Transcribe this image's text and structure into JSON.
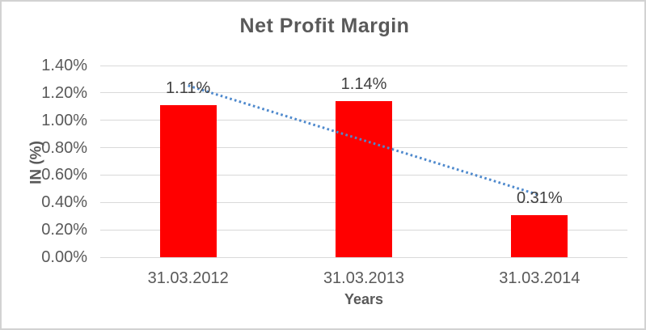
{
  "chart_data": {
    "type": "bar",
    "title": "Net Profit Margin",
    "categories": [
      "31.03.2012",
      "31.03.2013",
      "31.03.2014"
    ],
    "values": [
      1.11,
      1.14,
      0.31
    ],
    "value_labels": [
      "1.11%",
      "1.14%",
      "0.31%"
    ],
    "xlabel": "Years",
    "ylabel": "IN (%)",
    "ylim": [
      0,
      1.4
    ],
    "ytick_step": 0.2,
    "ytick_labels": [
      "0.00%",
      "0.20%",
      "0.40%",
      "0.60%",
      "0.80%",
      "1.00%",
      "1.20%",
      "1.40%"
    ],
    "grid": true,
    "legend_position": "none",
    "colors": {
      "bar": "#ff0000",
      "gridline": "#d9d9d9",
      "axis_text": "#595959",
      "data_label": "#404040",
      "title_text": "#595959",
      "trendline": "#4e89cd",
      "frame_border": "#d2d2d2"
    },
    "trendline": {
      "type": "linear",
      "style": "dotted",
      "color": "#4e89cd",
      "start_value": 1.2533,
      "end_value": 0.4533
    }
  }
}
